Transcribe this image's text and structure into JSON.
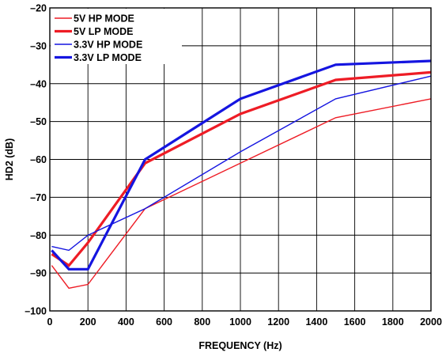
{
  "chart_data": {
    "type": "line",
    "xlabel": "FREQUENCY (Hz)",
    "ylabel": "HD2 (dB)",
    "xlim": [
      0,
      2000
    ],
    "ylim": [
      -100,
      -20
    ],
    "xticks": [
      0,
      200,
      400,
      600,
      800,
      1000,
      1200,
      1400,
      1600,
      1800,
      2000
    ],
    "yticks": [
      -100,
      -90,
      -80,
      -70,
      -60,
      -50,
      -40,
      -30,
      -20
    ],
    "xtick_labels": [
      "0",
      "200",
      "400",
      "600",
      "800",
      "1000",
      "1200",
      "1400",
      "1600",
      "1800",
      "2000"
    ],
    "ytick_labels": [
      "–100",
      "–90",
      "–80",
      "–70",
      "–60",
      "–50",
      "–40",
      "–30",
      "–20"
    ],
    "grid": true,
    "legend_position": "top-left",
    "series": [
      {
        "name": "5V HP MODE",
        "color": "#ee1c25",
        "weight": "thin",
        "points": [
          [
            10,
            -88
          ],
          [
            100,
            -94
          ],
          [
            200,
            -93
          ],
          [
            500,
            -73
          ],
          [
            1000,
            -61
          ],
          [
            1500,
            -49
          ],
          [
            2000,
            -44
          ]
        ]
      },
      {
        "name": "5V LP MODE",
        "color": "#ee1c25",
        "weight": "thick",
        "points": [
          [
            10,
            -85
          ],
          [
            100,
            -88
          ],
          [
            200,
            -82
          ],
          [
            500,
            -61
          ],
          [
            1000,
            -48
          ],
          [
            1500,
            -39
          ],
          [
            2000,
            -37
          ]
        ]
      },
      {
        "name": "3.3V HP MODE",
        "color": "#1515e0",
        "weight": "thin",
        "points": [
          [
            10,
            -83
          ],
          [
            100,
            -84
          ],
          [
            200,
            -80
          ],
          [
            500,
            -73
          ],
          [
            1000,
            -58
          ],
          [
            1500,
            -44
          ],
          [
            2000,
            -38
          ]
        ]
      },
      {
        "name": "3.3V LP MODE",
        "color": "#1515e0",
        "weight": "thick",
        "points": [
          [
            10,
            -84
          ],
          [
            100,
            -89
          ],
          [
            200,
            -89
          ],
          [
            500,
            -60
          ],
          [
            1000,
            -44
          ],
          [
            1500,
            -35
          ],
          [
            2000,
            -34
          ]
        ]
      }
    ]
  }
}
